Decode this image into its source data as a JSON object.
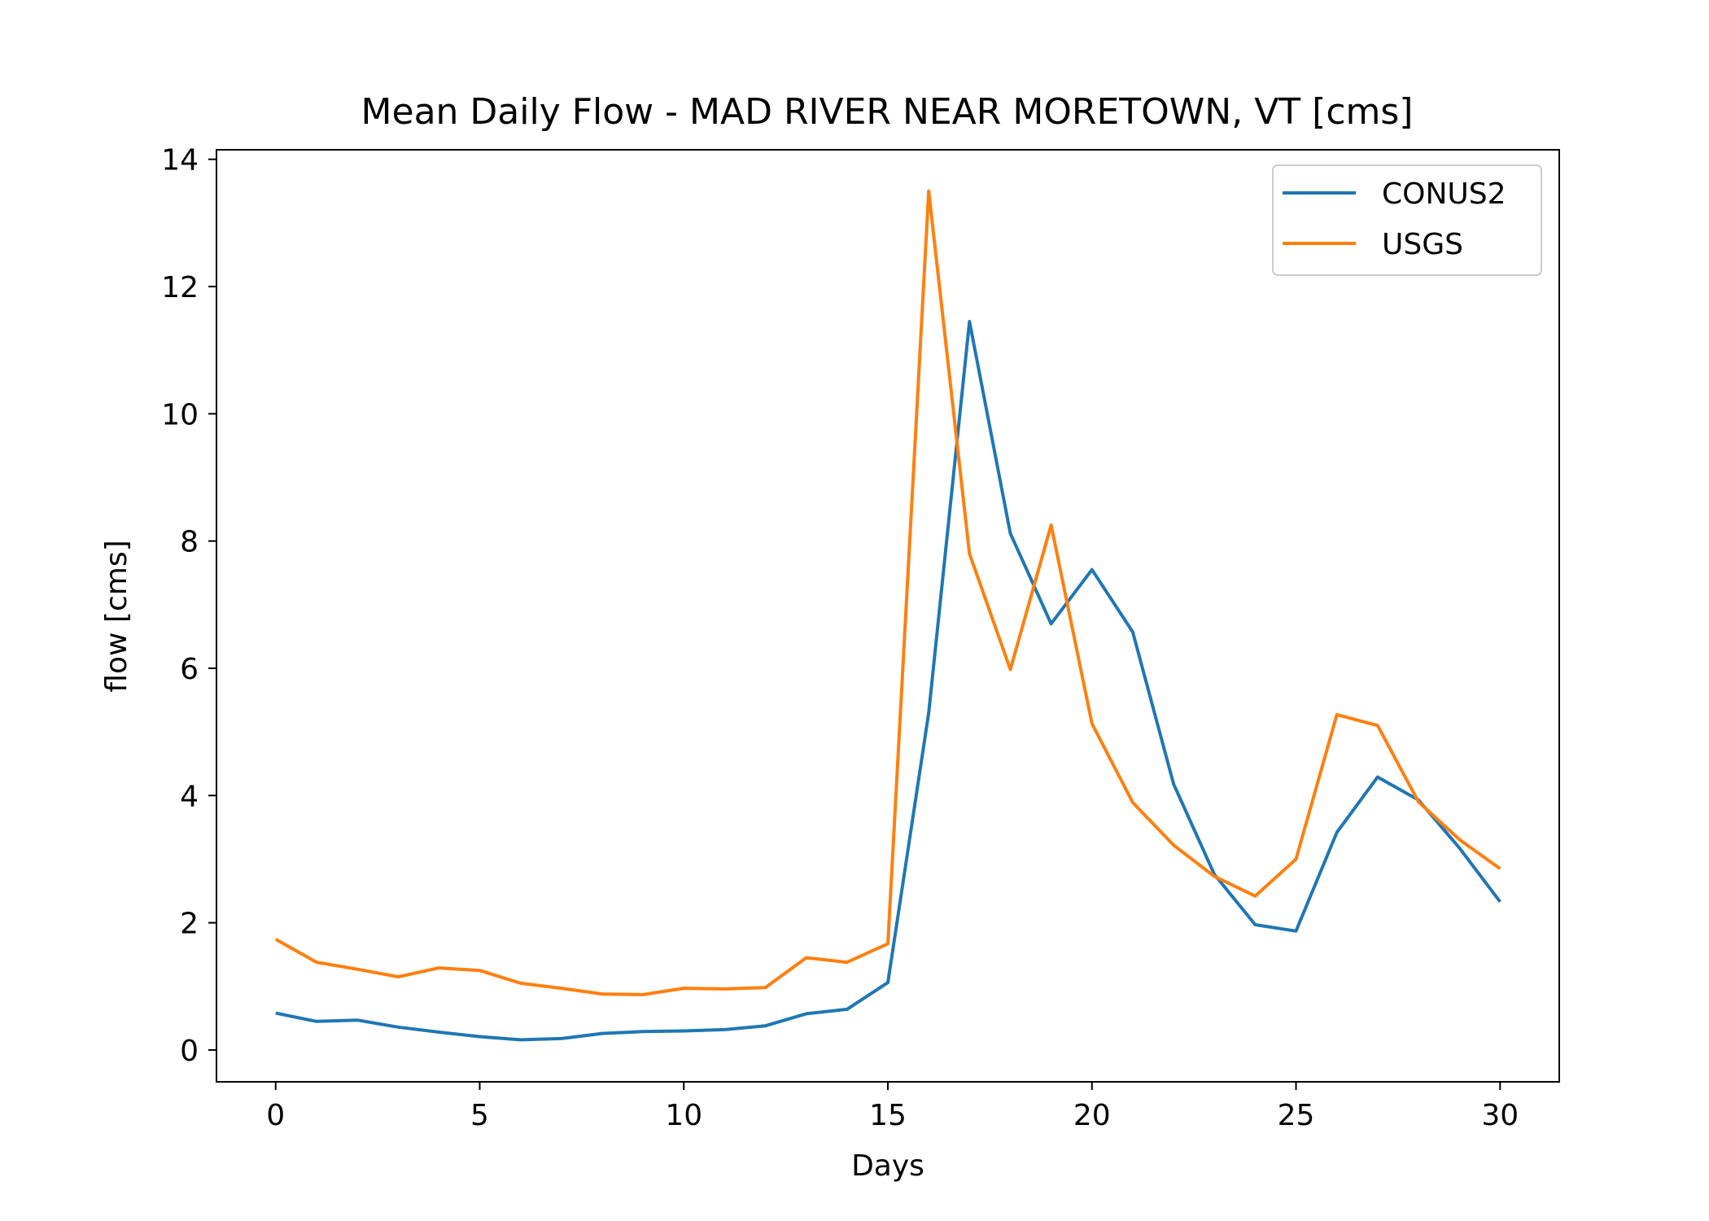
{
  "chart_data": {
    "type": "line",
    "title": "Mean Daily Flow - MAD RIVER NEAR MORETOWN, VT [cms]",
    "xlabel": "Days",
    "ylabel": "flow [cms]",
    "xlim": [
      -1.45,
      31.45
    ],
    "ylim": [
      -0.5,
      14.15
    ],
    "xticks": [
      0,
      5,
      10,
      15,
      20,
      25,
      30
    ],
    "yticks": [
      0,
      2,
      4,
      6,
      8,
      10,
      12,
      14
    ],
    "grid": false,
    "legend_position": "upper right",
    "x": [
      0,
      1,
      2,
      3,
      4,
      5,
      6,
      7,
      8,
      9,
      10,
      11,
      12,
      13,
      14,
      15,
      16,
      17,
      18,
      19,
      20,
      21,
      22,
      23,
      24,
      25,
      26,
      27,
      28,
      29,
      30
    ],
    "series": [
      {
        "name": "CONUS2",
        "color": "#1f77b4",
        "values": [
          0.58,
          0.45,
          0.47,
          0.36,
          0.28,
          0.21,
          0.16,
          0.18,
          0.26,
          0.29,
          0.3,
          0.32,
          0.38,
          0.57,
          0.64,
          1.06,
          5.3,
          11.45,
          8.12,
          6.7,
          7.55,
          6.57,
          4.18,
          2.76,
          1.97,
          1.87,
          3.42,
          4.29,
          3.93,
          3.18,
          2.33
        ]
      },
      {
        "name": "USGS",
        "color": "#ff7f0e",
        "values": [
          1.74,
          1.38,
          1.27,
          1.15,
          1.29,
          1.25,
          1.05,
          0.97,
          0.88,
          0.87,
          0.97,
          0.96,
          0.98,
          1.45,
          1.38,
          1.67,
          13.5,
          7.8,
          5.98,
          8.25,
          5.13,
          3.89,
          3.22,
          2.73,
          2.42,
          3.0,
          5.27,
          5.1,
          3.9,
          3.31,
          2.85
        ]
      }
    ]
  }
}
